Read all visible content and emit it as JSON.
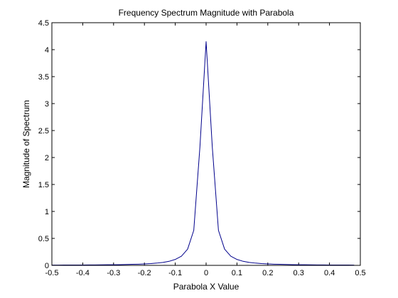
{
  "chart_data": {
    "type": "line",
    "title": "Frequency Spectrum Magnitude with Parabola",
    "xlabel": "Parabola X Value",
    "ylabel": "Magnitude of Spectrum",
    "xlim": [
      -0.5,
      0.5
    ],
    "ylim": [
      0,
      4.5
    ],
    "xticks": [
      -0.5,
      -0.4,
      -0.3,
      -0.2,
      -0.1,
      0,
      0.1,
      0.2,
      0.3,
      0.4,
      0.5
    ],
    "xtick_labels": [
      "-0.5",
      "-0.4",
      "-0.3",
      "-0.2",
      "-0.1",
      "0",
      "0.1",
      "0.2",
      "0.3",
      "0.4",
      "0.5"
    ],
    "yticks": [
      0,
      0.5,
      1,
      1.5,
      2,
      2.5,
      3,
      3.5,
      4,
      4.5
    ],
    "ytick_labels": [
      "0",
      "0.5",
      "1",
      "1.5",
      "2",
      "2.5",
      "3",
      "3.5",
      "4",
      "4.5"
    ],
    "grid": false,
    "legend": "none",
    "series": [
      {
        "color": "#00008B",
        "x": [
          -0.5,
          -0.48,
          -0.46,
          -0.44,
          -0.42,
          -0.4,
          -0.38,
          -0.36,
          -0.34,
          -0.32,
          -0.3,
          -0.28,
          -0.26,
          -0.24,
          -0.22,
          -0.2,
          -0.18,
          -0.16,
          -0.14,
          -0.12,
          -0.1,
          -0.08,
          -0.06,
          -0.04,
          -0.02,
          0,
          0.02,
          0.04,
          0.06,
          0.08,
          0.1,
          0.12,
          0.14,
          0.16,
          0.18,
          0.2,
          0.22,
          0.24,
          0.26,
          0.28,
          0.3,
          0.32,
          0.34,
          0.36,
          0.38,
          0.4,
          0.42,
          0.44,
          0.46,
          0.48
        ],
        "y": [
          0.005,
          0.005,
          0.006,
          0.006,
          0.007,
          0.007,
          0.008,
          0.009,
          0.01,
          0.011,
          0.012,
          0.014,
          0.016,
          0.019,
          0.022,
          0.027,
          0.033,
          0.042,
          0.055,
          0.075,
          0.11,
          0.17,
          0.3,
          0.65,
          2.2,
          4.15,
          2.2,
          0.65,
          0.3,
          0.17,
          0.11,
          0.075,
          0.055,
          0.042,
          0.033,
          0.027,
          0.022,
          0.019,
          0.016,
          0.014,
          0.012,
          0.011,
          0.01,
          0.009,
          0.008,
          0.007,
          0.007,
          0.006,
          0.006,
          0.005
        ]
      }
    ]
  }
}
